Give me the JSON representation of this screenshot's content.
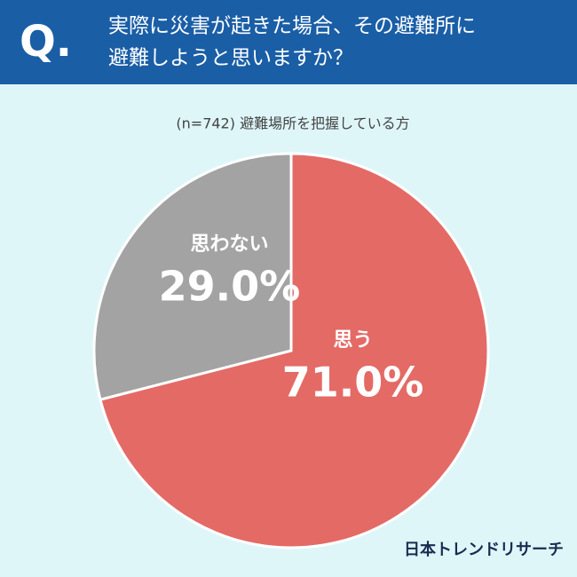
{
  "header": {
    "mark": "Q.",
    "lines": [
      "実際に災害が起きた場合、その避難所に",
      "避難しようと思いますか？"
    ]
  },
  "chart_data": {
    "type": "pie",
    "subtitle": "(n=742) 避難場所を把握している方",
    "categories": [
      "思う",
      "思わない"
    ],
    "values": [
      71.0,
      29.0
    ],
    "value_labels": [
      "71.0%",
      "29.0%"
    ],
    "colors": [
      "#e46a66",
      "#a3a3a3"
    ]
  },
  "footer": {
    "logo": "日本トレンドリサーチ"
  }
}
